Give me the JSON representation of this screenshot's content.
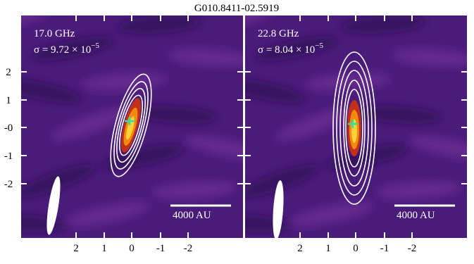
{
  "title": "G010.8411-02.5919",
  "y_ticks": [
    "2",
    "1",
    "-0",
    "-1",
    "-2"
  ],
  "panels": [
    {
      "frequency": "17.0 GHz",
      "sigma": "σ = 9.72 × 10",
      "sigma_exponent": "−5",
      "scale_bar": "4000 AU",
      "x_ticks": [
        "2",
        "1",
        "0",
        "-1",
        "-2"
      ]
    },
    {
      "frequency": "22.8 GHz",
      "sigma": "σ = 8.04 × 10",
      "sigma_exponent": "−5",
      "scale_bar": "4000 AU",
      "x_ticks": [
        "2",
        "1",
        "0",
        "-1",
        "-2"
      ]
    }
  ]
}
